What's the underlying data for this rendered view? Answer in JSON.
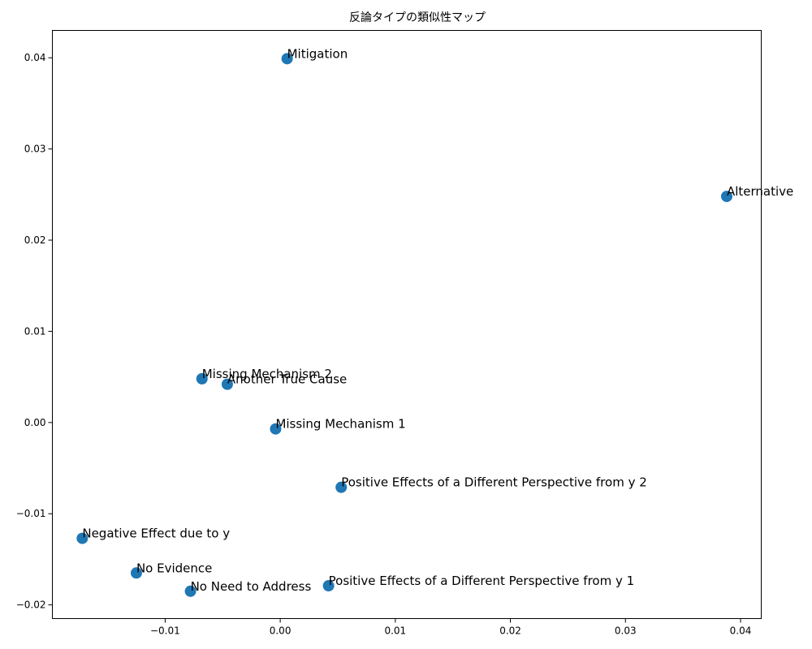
{
  "chart_data": {
    "type": "scatter",
    "title": "反論タイプの類似性マップ",
    "xlabel": "",
    "ylabel": "",
    "xlim": [
      -0.0198,
      0.0418
    ],
    "ylim": [
      -0.0215,
      0.043
    ],
    "grid": false,
    "marker_color": "#1f77b4",
    "xticks": [
      -0.01,
      0.0,
      0.01,
      0.02,
      0.03,
      0.04
    ],
    "xtick_labels": [
      "−0.01",
      "0.00",
      "0.01",
      "0.02",
      "0.03",
      "0.04"
    ],
    "yticks": [
      -0.02,
      -0.01,
      0.0,
      0.01,
      0.02,
      0.03,
      0.04
    ],
    "ytick_labels": [
      "−0.02",
      "−0.01",
      "0.00",
      "0.01",
      "0.02",
      "0.03",
      "0.04"
    ],
    "points": [
      {
        "label": "Mitigation",
        "x": 0.0006,
        "y": 0.0399
      },
      {
        "label": "Alternative",
        "x": 0.0388,
        "y": 0.0248
      },
      {
        "label": "Missing Mechanism 2",
        "x": -0.0068,
        "y": 0.0048
      },
      {
        "label": "Another True Cause",
        "x": -0.0046,
        "y": 0.0042
      },
      {
        "label": "Missing Mechanism 1",
        "x": -0.0004,
        "y": -0.0007
      },
      {
        "label": "Positive Effects of a Different Perspective from y 2",
        "x": 0.0053,
        "y": -0.0071
      },
      {
        "label": "Negative Effect due to y",
        "x": -0.0172,
        "y": -0.0127
      },
      {
        "label": "No Evidence",
        "x": -0.0125,
        "y": -0.0165
      },
      {
        "label": "Positive Effects of a Different Perspective from y 1",
        "x": 0.0042,
        "y": -0.0179
      },
      {
        "label": "No Need to Address",
        "x": -0.0078,
        "y": -0.0185
      }
    ]
  }
}
